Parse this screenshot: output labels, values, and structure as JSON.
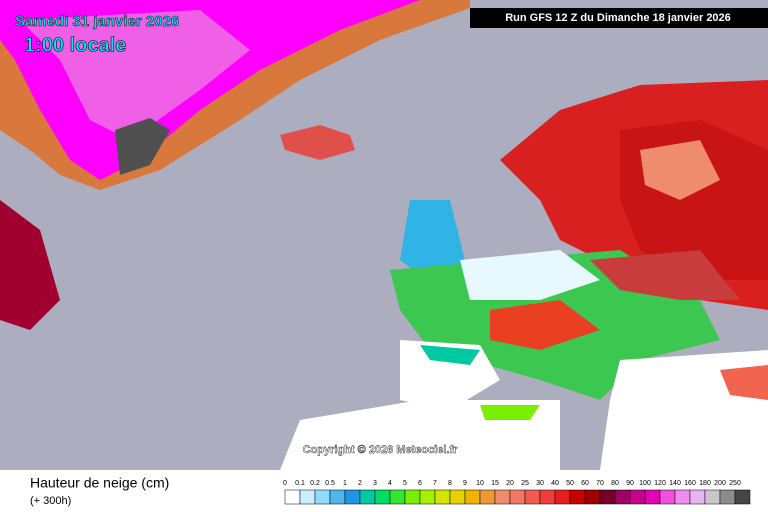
{
  "header": {
    "date": "Samedi 31 janvier 2026",
    "time": "1:00 locale",
    "run": "Run GFS 12 Z du Dimanche 18 janvier 2026"
  },
  "copyright": "Copyright © 2026 Meteociel.fr",
  "legend": {
    "title": "Hauteur de neige (cm)",
    "subtitle": "(+ 300h)",
    "scale": [
      {
        "value": 0,
        "color": "#ffffff"
      },
      {
        "value": 0.1,
        "color": "#c8f0ff"
      },
      {
        "value": 0.2,
        "color": "#8cdcfa"
      },
      {
        "value": 0.5,
        "color": "#50b4f0"
      },
      {
        "value": 1,
        "color": "#1e96e6"
      },
      {
        "value": 2,
        "color": "#00c8a0"
      },
      {
        "value": 3,
        "color": "#00dc64"
      },
      {
        "value": 4,
        "color": "#32e632"
      },
      {
        "value": 5,
        "color": "#78f000"
      },
      {
        "value": 6,
        "color": "#a8f000"
      },
      {
        "value": 7,
        "color": "#d2e600"
      },
      {
        "value": 8,
        "color": "#e6d200"
      },
      {
        "value": 9,
        "color": "#f0b400"
      },
      {
        "value": 10,
        "color": "#f09632"
      },
      {
        "value": 15,
        "color": "#f08c6e"
      },
      {
        "value": 20,
        "color": "#f07864"
      },
      {
        "value": 25,
        "color": "#f05a50"
      },
      {
        "value": 30,
        "color": "#f03c3c"
      },
      {
        "value": 40,
        "color": "#e61e1e"
      },
      {
        "value": 50,
        "color": "#c80000"
      },
      {
        "value": 60,
        "color": "#a00000"
      },
      {
        "value": 70,
        "color": "#780028"
      },
      {
        "value": 80,
        "color": "#a00064"
      },
      {
        "value": 90,
        "color": "#c8008c"
      },
      {
        "value": 100,
        "color": "#e600b4"
      },
      {
        "value": 120,
        "color": "#f050dc"
      },
      {
        "value": 140,
        "color": "#f08cf0"
      },
      {
        "value": 160,
        "color": "#e6b4f0"
      },
      {
        "value": 180,
        "color": "#c8c8c8"
      },
      {
        "value": 200,
        "color": "#8c8c8c"
      },
      {
        "value": 250,
        "color": "#464646"
      }
    ]
  }
}
